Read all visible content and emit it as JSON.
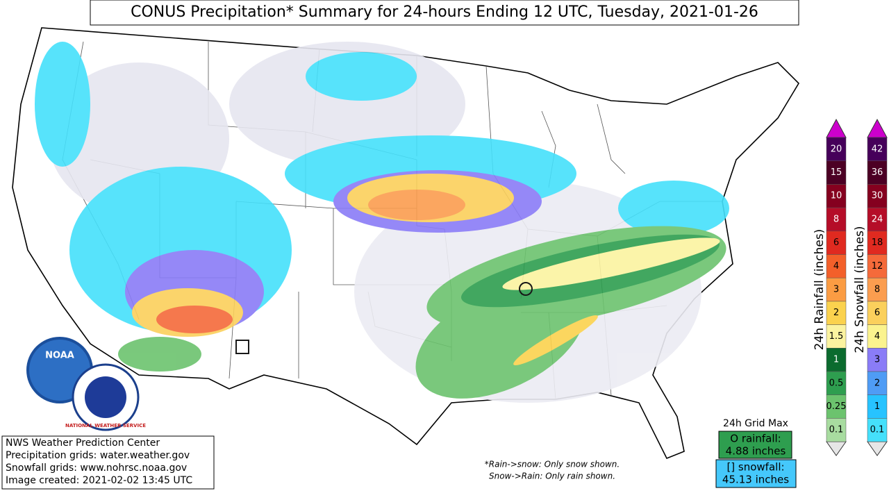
{
  "header": {
    "title": "CONUS Precipitation* Summary for 24-hours Ending 12 UTC, Tuesday, 2021-01-26"
  },
  "credits": {
    "lines": [
      "NWS Weather Prediction Center",
      "Precipitation grids: water.weather.gov",
      "Snowfall grids: www.nohrsc.noaa.gov",
      "Image created: 2021-02-02 13:45 UTC"
    ]
  },
  "notes": [
    "*Rain->snow: Only snow shown.",
    "Snow->Rain: Only rain shown."
  ],
  "logos": {
    "noaa": "NOAA",
    "nws": "NATIONAL WEATHER SERVICE"
  },
  "grid_max": {
    "title": "24h Grid Max",
    "rain_label": "O rainfall:",
    "rain_value": "4.88 inches",
    "snow_label": "[] snowfall:",
    "snow_value": "45.13 inches"
  },
  "rain_legend": {
    "title": "24h Rainfall (inches)",
    "entries": [
      {
        "label": "0.1",
        "color": "#a8dca0"
      },
      {
        "label": "0.25",
        "color": "#6cc36e"
      },
      {
        "label": "0.5",
        "color": "#2e9e4f"
      },
      {
        "label": "1",
        "color": "#0b6b2e"
      },
      {
        "label": "1.5",
        "color": "#fbf3a0"
      },
      {
        "label": "2",
        "color": "#fbd24e"
      },
      {
        "label": "3",
        "color": "#fb9c43"
      },
      {
        "label": "4",
        "color": "#f3602a"
      },
      {
        "label": "6",
        "color": "#e02a20"
      },
      {
        "label": "8",
        "color": "#b50d28"
      },
      {
        "label": "10",
        "color": "#85001f"
      },
      {
        "label": "15",
        "color": "#4c0024"
      },
      {
        "label": "20",
        "color": "#46005a"
      }
    ]
  },
  "snow_legend": {
    "title": "24h Snowfall (inches)",
    "entries": [
      {
        "label": "0.1",
        "color": "#45e0fb"
      },
      {
        "label": "1",
        "color": "#27c3ff"
      },
      {
        "label": "2",
        "color": "#4f9cf5"
      },
      {
        "label": "3",
        "color": "#8a7cf7"
      },
      {
        "label": "4",
        "color": "#fbf38e"
      },
      {
        "label": "6",
        "color": "#fbd05c"
      },
      {
        "label": "8",
        "color": "#fb9d4f"
      },
      {
        "label": "12",
        "color": "#f56a3a"
      },
      {
        "label": "18",
        "color": "#e02a20"
      },
      {
        "label": "24",
        "color": "#b50d28"
      },
      {
        "label": "30",
        "color": "#85001f"
      },
      {
        "label": "36",
        "color": "#4c0024"
      },
      {
        "label": "42",
        "color": "#46005a"
      }
    ]
  }
}
